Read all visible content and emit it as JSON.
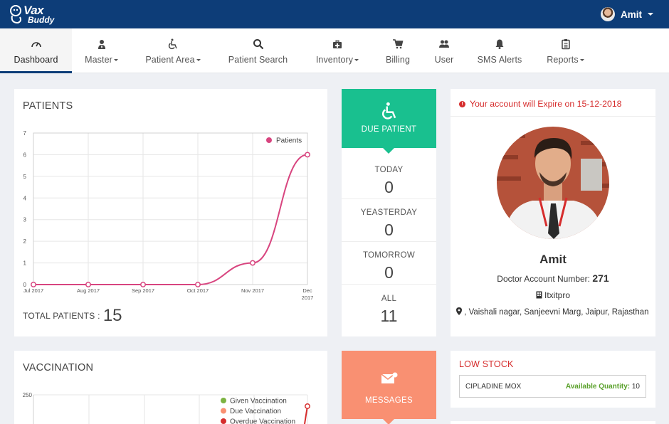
{
  "brand": {
    "line1": "Vax",
    "line2": "Buddy"
  },
  "user": {
    "name": "Amit"
  },
  "nav": [
    {
      "label": "Dashboard",
      "icon": "dashboard-icon",
      "dropdown": false,
      "active": true
    },
    {
      "label": "Master",
      "icon": "user-tie-icon",
      "dropdown": true,
      "active": false
    },
    {
      "label": "Patient Area",
      "icon": "wheelchair-icon",
      "dropdown": true,
      "active": false
    },
    {
      "label": "Patient Search",
      "icon": "search-icon",
      "dropdown": false,
      "active": false
    },
    {
      "label": "Inventory",
      "icon": "medkit-icon",
      "dropdown": true,
      "active": false
    },
    {
      "label": "Billing",
      "icon": "cart-icon",
      "dropdown": false,
      "active": false
    },
    {
      "label": "User",
      "icon": "users-icon",
      "dropdown": false,
      "active": false
    },
    {
      "label": "SMS Alerts",
      "icon": "bell-icon",
      "dropdown": false,
      "active": false
    },
    {
      "label": "Reports",
      "icon": "clipboard-icon",
      "dropdown": true,
      "active": false
    }
  ],
  "patients": {
    "title": "PATIENTS",
    "total_label": "TOTAL PATIENTS :",
    "total_value": "15"
  },
  "chart_data": [
    {
      "type": "line",
      "title": "PATIENTS",
      "x": [
        "Jul 2017",
        "Aug 2017",
        "Sep 2017",
        "Oct 2017",
        "Nov 2017",
        "Dec 2017"
      ],
      "series": [
        {
          "name": "Patients",
          "values": [
            0,
            0,
            0,
            0,
            1,
            6
          ],
          "color": "#d8457f"
        }
      ],
      "ylim": [
        0,
        7
      ],
      "yticks": [
        0,
        1,
        2,
        3,
        4,
        5,
        6,
        7
      ],
      "legend": "top-right",
      "grid": true
    },
    {
      "type": "line",
      "title": "VACCINATION",
      "yticks_visible": [
        250
      ],
      "series": [
        {
          "name": "Given Vaccination",
          "color": "#7cb342"
        },
        {
          "name": "Due Vaccination",
          "color": "#f99072"
        },
        {
          "name": "Overdue Vaccination",
          "color": "#d62d2d"
        }
      ],
      "legend": "top-right",
      "grid": true
    }
  ],
  "due": {
    "header": "DUE PATIENT",
    "rows": [
      {
        "label": "TODAY",
        "value": "0"
      },
      {
        "label": "YEASTERDAY",
        "value": "0"
      },
      {
        "label": "TOMORROW",
        "value": "0"
      },
      {
        "label": "ALL",
        "value": "11"
      }
    ]
  },
  "profile": {
    "warning": "Your account will Expire on 15-12-2018",
    "name": "Amit",
    "account_label": "Doctor Account Number:",
    "account_number": "271",
    "org": "Itxitpro",
    "address": ", Vaishali nagar, Sanjeevni Marg, Jaipur, Rajasthan"
  },
  "vaccination": {
    "title": "VACCINATION"
  },
  "messages": {
    "header": "MESSAGES"
  },
  "low_stock": {
    "title": "LOW STOCK",
    "item": "CIPLADINE MOX",
    "qty_label": "Available Quantity:",
    "qty_value": "10"
  },
  "colors": {
    "topbar": "#0d3d78",
    "due": "#19c08f",
    "messages": "#f99072",
    "alert": "#d62d2d",
    "series_line": "#d8457f"
  }
}
